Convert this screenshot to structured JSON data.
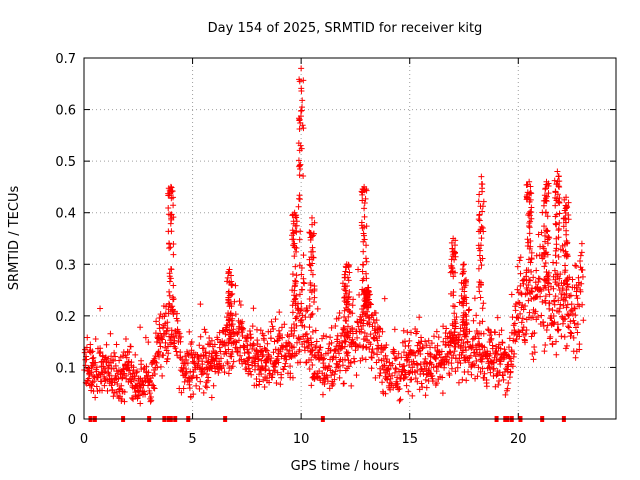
{
  "chart_data": {
    "type": "scatter",
    "title": "Day 154 of 2025, SRMTID for receiver kitg",
    "xlabel": "GPS time / hours",
    "ylabel": "SRMTID / TECUs",
    "xlim": [
      0,
      24.5
    ],
    "ylim": [
      0,
      0.7
    ],
    "xticks": [
      0,
      5,
      10,
      15,
      20
    ],
    "yticks": [
      0,
      0.1,
      0.2,
      0.3,
      0.4,
      0.5,
      0.6,
      0.7
    ],
    "grid": true,
    "marker": "+",
    "color": "#ff0000",
    "baseline_marks_x": [
      0.3,
      0.5,
      1.8,
      3.0,
      3.7,
      3.9,
      4.0,
      4.2,
      4.8,
      6.5,
      11.0,
      19.0,
      19.4,
      19.5,
      19.7,
      20.1,
      21.1,
      22.1
    ],
    "envelope": [
      {
        "x": 0.0,
        "y": 0.1
      },
      {
        "x": 0.5,
        "y": 0.09
      },
      {
        "x": 1.0,
        "y": 0.1
      },
      {
        "x": 1.5,
        "y": 0.07
      },
      {
        "x": 2.0,
        "y": 0.1
      },
      {
        "x": 2.5,
        "y": 0.06
      },
      {
        "x": 3.0,
        "y": 0.07
      },
      {
        "x": 3.5,
        "y": 0.15
      },
      {
        "x": 4.0,
        "y": 0.2
      },
      {
        "x": 4.5,
        "y": 0.1
      },
      {
        "x": 5.0,
        "y": 0.09
      },
      {
        "x": 5.5,
        "y": 0.12
      },
      {
        "x": 6.0,
        "y": 0.1
      },
      {
        "x": 6.5,
        "y": 0.13
      },
      {
        "x": 7.0,
        "y": 0.16
      },
      {
        "x": 7.5,
        "y": 0.13
      },
      {
        "x": 8.0,
        "y": 0.12
      },
      {
        "x": 8.5,
        "y": 0.11
      },
      {
        "x": 9.0,
        "y": 0.13
      },
      {
        "x": 9.5,
        "y": 0.14
      },
      {
        "x": 10.0,
        "y": 0.2
      },
      {
        "x": 10.5,
        "y": 0.12
      },
      {
        "x": 11.0,
        "y": 0.1
      },
      {
        "x": 11.5,
        "y": 0.12
      },
      {
        "x": 12.0,
        "y": 0.15
      },
      {
        "x": 12.5,
        "y": 0.14
      },
      {
        "x": 13.0,
        "y": 0.2
      },
      {
        "x": 13.5,
        "y": 0.15
      },
      {
        "x": 14.0,
        "y": 0.09
      },
      {
        "x": 14.5,
        "y": 0.08
      },
      {
        "x": 15.0,
        "y": 0.12
      },
      {
        "x": 15.5,
        "y": 0.12
      },
      {
        "x": 16.0,
        "y": 0.1
      },
      {
        "x": 16.5,
        "y": 0.12
      },
      {
        "x": 17.0,
        "y": 0.14
      },
      {
        "x": 17.5,
        "y": 0.13
      },
      {
        "x": 18.0,
        "y": 0.15
      },
      {
        "x": 18.5,
        "y": 0.11
      },
      {
        "x": 19.0,
        "y": 0.13
      },
      {
        "x": 19.5,
        "y": 0.1
      },
      {
        "x": 20.0,
        "y": 0.2
      },
      {
        "x": 20.5,
        "y": 0.22
      },
      {
        "x": 21.0,
        "y": 0.25
      },
      {
        "x": 21.5,
        "y": 0.24
      },
      {
        "x": 22.0,
        "y": 0.23
      },
      {
        "x": 22.5,
        "y": 0.22
      },
      {
        "x": 23.0,
        "y": 0.25
      }
    ],
    "spikes": [
      {
        "x": 4.0,
        "peak": 0.45
      },
      {
        "x": 6.7,
        "peak": 0.29
      },
      {
        "x": 9.7,
        "peak": 0.4
      },
      {
        "x": 10.0,
        "peak": 0.68
      },
      {
        "x": 10.5,
        "peak": 0.39
      },
      {
        "x": 12.1,
        "peak": 0.3
      },
      {
        "x": 12.9,
        "peak": 0.45
      },
      {
        "x": 13.0,
        "peak": 0.25
      },
      {
        "x": 17.0,
        "peak": 0.35
      },
      {
        "x": 17.5,
        "peak": 0.3
      },
      {
        "x": 18.3,
        "peak": 0.47
      },
      {
        "x": 20.5,
        "peak": 0.46
      },
      {
        "x": 21.3,
        "peak": 0.46
      },
      {
        "x": 21.8,
        "peak": 0.48
      },
      {
        "x": 22.2,
        "peak": 0.43
      }
    ]
  }
}
